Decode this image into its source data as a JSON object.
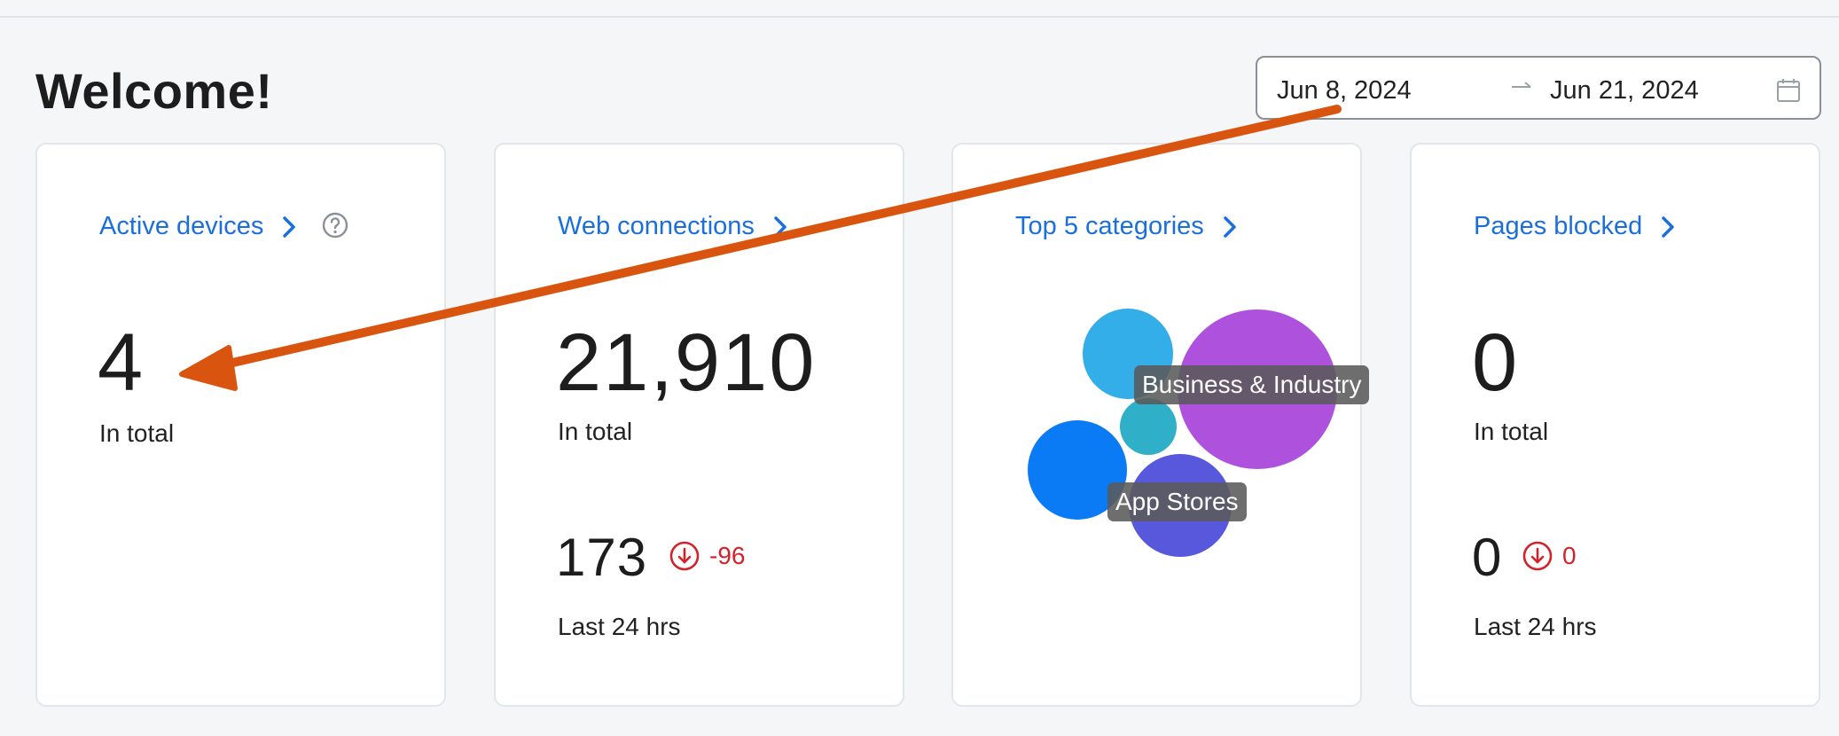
{
  "header": {
    "title": "Welcome!"
  },
  "date_range": {
    "start": "Jun 8, 2024",
    "end": "Jun 21, 2024",
    "separator_icon": "arrow-right-icon",
    "calendar_icon": "calendar-icon"
  },
  "cards": {
    "active_devices": {
      "link": "Active devices",
      "total": "4",
      "total_label": "In total",
      "help_icon": "help-circle-icon"
    },
    "web_connections": {
      "link": "Web connections",
      "total": "21,910",
      "total_label": "In total",
      "last24": "173",
      "delta": "-96",
      "last24_label": "Last 24 hrs"
    },
    "top_categories": {
      "link": "Top 5 categories",
      "bubbles": [
        {
          "color": "#34aee8"
        },
        {
          "color": "#ae52de"
        },
        {
          "color": "#2fb0c8"
        },
        {
          "color": "#0a7bf5"
        },
        {
          "color": "#5858dc"
        }
      ],
      "tooltips": [
        "Business & Industry",
        "App Stores"
      ]
    },
    "pages_blocked": {
      "link": "Pages blocked",
      "total": "0",
      "total_label": "In total",
      "last24": "0",
      "delta": "0",
      "last24_label": "Last 24 hrs"
    }
  },
  "colors": {
    "link": "#1a6fdc",
    "negative": "#d2232a",
    "annotation_arrow": "#d8540f"
  }
}
